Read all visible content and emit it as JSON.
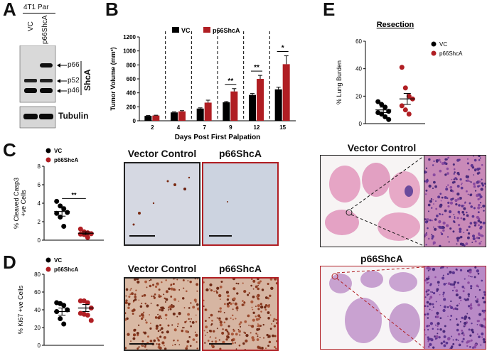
{
  "panel_labels": {
    "a": "A",
    "b": "B",
    "c": "C",
    "d": "D",
    "e": "E"
  },
  "panel_a": {
    "header": "4T1 Par",
    "lanes": [
      "VC",
      "p66ShcA"
    ],
    "band_labels": {
      "p66": "p66",
      "p52": "p52",
      "p46": "p46",
      "shca": "ShcA",
      "tubulin": "Tubulin"
    }
  },
  "panel_b_chart": {
    "type": "bar",
    "ylabel": "Tumor Volume (mm³)",
    "xlabel": "Days Post First Palpation",
    "categories": [
      "2",
      "4",
      "7",
      "9",
      "12",
      "15"
    ],
    "yticks": [
      "0",
      "200",
      "400",
      "600",
      "800",
      "1000",
      "1200"
    ],
    "ylim": [
      0,
      1200
    ],
    "legend": [
      "VC",
      "p66ShcA"
    ],
    "series": [
      {
        "name": "VC",
        "color": "#000000",
        "values": [
          70,
          120,
          175,
          265,
          370,
          450
        ],
        "errors": [
          5,
          8,
          10,
          10,
          20,
          30
        ]
      },
      {
        "name": "p66ShcA",
        "color": "#b01e23",
        "values": [
          75,
          135,
          260,
          420,
          600,
          810
        ],
        "errors": [
          5,
          10,
          35,
          40,
          50,
          120
        ]
      }
    ],
    "significance": [
      {
        "category": "9",
        "label": "**"
      },
      {
        "category": "12",
        "label": "**"
      },
      {
        "category": "15",
        "label": "*"
      }
    ]
  },
  "panel_c_chart": {
    "type": "scatter",
    "ylabel_lines": [
      "% Cleaved Casp3",
      "+ve Cells"
    ],
    "yticks": [
      "0",
      "2",
      "4",
      "6",
      "8"
    ],
    "ylim": [
      0,
      8
    ],
    "legend": [
      "VC",
      "p66ShcA"
    ],
    "groups": [
      {
        "name": "VC",
        "color": "#000000",
        "values": [
          4.2,
          3.7,
          3.4,
          3.0,
          2.9,
          2.5,
          1.5
        ],
        "mean": 3.1,
        "sem": 0.5
      },
      {
        "name": "p66ShcA",
        "color": "#b01e23",
        "values": [
          1.2,
          0.9,
          0.8,
          0.7,
          0.65,
          0.6,
          0.3
        ],
        "mean": 0.75,
        "sem": 0.15
      }
    ],
    "significance": "**"
  },
  "panel_d_chart": {
    "type": "scatter",
    "ylabel": "% Ki67 +ve Cells",
    "yticks": [
      "0",
      "20",
      "40",
      "60",
      "80"
    ],
    "ylim": [
      0,
      80
    ],
    "legend": [
      "VC",
      "p66ShcA"
    ],
    "groups": [
      {
        "name": "VC",
        "color": "#000000",
        "values": [
          48,
          47,
          45,
          40,
          38,
          30,
          24
        ],
        "mean": 38,
        "sem": 4
      },
      {
        "name": "p66ShcA",
        "color": "#b01e23",
        "values": [
          50,
          50,
          48,
          42,
          36,
          35,
          34,
          28
        ],
        "mean": 42,
        "sem": 4
      }
    ]
  },
  "panel_e_chart": {
    "type": "scatter",
    "title": "Resection",
    "ylabel": "% Lung Burden",
    "yticks": [
      "0",
      "20",
      "40",
      "60"
    ],
    "ylim": [
      0,
      60
    ],
    "legend": [
      "VC",
      "p66ShcA"
    ],
    "groups": [
      {
        "name": "VC",
        "color": "#000000",
        "values": [
          16,
          14,
          12,
          9,
          8,
          7,
          5,
          3
        ],
        "mean": 10,
        "sem": 2
      },
      {
        "name": "p66ShcA",
        "color": "#b01e23",
        "values": [
          41,
          26,
          20,
          18,
          13,
          10,
          7
        ],
        "mean": 18,
        "sem": 4
      }
    ]
  },
  "micrographs": {
    "casp3_vc_title": "Vector Control",
    "casp3_p66_title": "p66ShcA",
    "ki67_vc_title": "Vector Control",
    "ki67_p66_title": "p66ShcA",
    "lung_vc_title": "Vector Control",
    "lung_p66_title": "p66ShcA",
    "border_vc": "#222222",
    "border_p66": "#b01e23"
  }
}
